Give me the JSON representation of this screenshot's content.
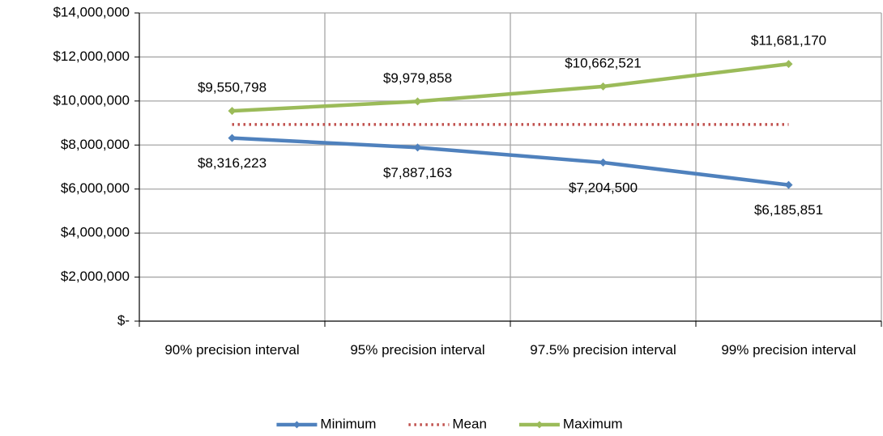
{
  "chart_data": {
    "type": "line",
    "categories": [
      "90% precision interval",
      "95% precision interval",
      "97.5% precision interval",
      "99% precision interval"
    ],
    "series": [
      {
        "name": "Minimum",
        "color": "#4f81bd",
        "style": "solid",
        "marker": "diamond",
        "label_position": "below",
        "values": [
          8316223,
          7887163,
          7204500,
          6185851
        ],
        "value_labels": [
          "$8,316,223",
          "$7,887,163",
          "$7,204,500",
          "$6,185,851"
        ]
      },
      {
        "name": "Mean",
        "color": "#c0504d",
        "style": "dotted",
        "marker": "none",
        "values": [
          8933510,
          8933510,
          8933510,
          8933510
        ]
      },
      {
        "name": "Maximum",
        "color": "#9bbb59",
        "style": "solid",
        "marker": "diamond",
        "label_position": "above",
        "values": [
          9550798,
          9979858,
          10662521,
          11681170
        ],
        "value_labels": [
          "$9,550,798",
          "$9,979,858",
          "$10,662,521",
          "$11,681,170"
        ]
      }
    ],
    "ylim": [
      0,
      14000000
    ],
    "yticks": [
      {
        "value": 0,
        "label": "$-"
      },
      {
        "value": 2000000,
        "label": "$2,000,000"
      },
      {
        "value": 4000000,
        "label": "$4,000,000"
      },
      {
        "value": 6000000,
        "label": "$6,000,000"
      },
      {
        "value": 8000000,
        "label": "$8,000,000"
      },
      {
        "value": 10000000,
        "label": "$10,000,000"
      },
      {
        "value": 12000000,
        "label": "$12,000,000"
      },
      {
        "value": 14000000,
        "label": "$14,000,000"
      }
    ],
    "grid": true,
    "legend": "bottom"
  }
}
